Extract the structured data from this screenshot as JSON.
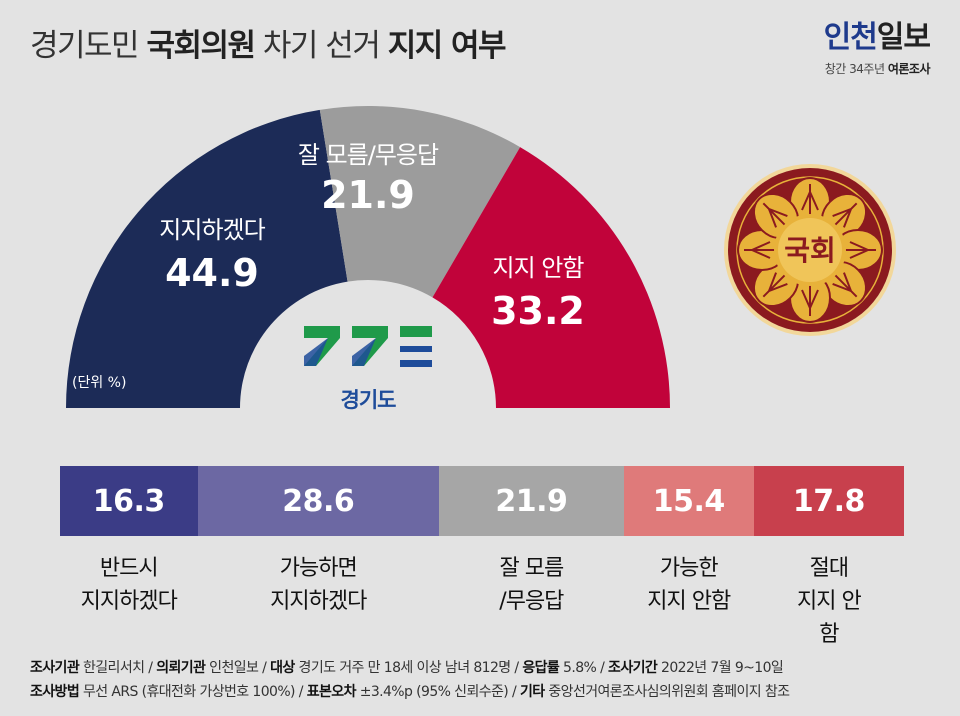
{
  "header": {
    "title_part1": "경기도민",
    "title_part2": "국회의원",
    "title_part3": "차기 선거",
    "title_part4": "지지 여부",
    "brand_name_a": "인천",
    "brand_name_b": "일보",
    "brand_sub_a": "창간 34주년",
    "brand_sub_b": "여론조사"
  },
  "gauge": {
    "unit_label": "(단위 %)",
    "segments": [
      {
        "label": "지지하겠다",
        "value": 44.9,
        "color": "#1c2b57"
      },
      {
        "label": "잘 모름/무응답",
        "value": 21.9,
        "color": "#9c9c9c"
      },
      {
        "label": "지지 안함",
        "value": 33.2,
        "color": "#c1033a"
      }
    ]
  },
  "logos": {
    "gyeonggi_name": "경기도",
    "seal_text": "국회",
    "seal_color": "#8b1a1f",
    "seal_gold": "#e8b23a"
  },
  "bars": {
    "items": [
      {
        "value": "16.3",
        "label": "반드시\n지지하겠다",
        "color": "#3b3c86"
      },
      {
        "value": "28.6",
        "label": "가능하면\n지지하겠다",
        "color": "#6c68a3"
      },
      {
        "value": "21.9",
        "label": "잘 모름\n/무응답",
        "color": "#a6a6a6"
      },
      {
        "value": "15.4",
        "label": "가능한\n지지 안함",
        "color": "#df7a7a"
      },
      {
        "value": "17.8",
        "label": "절대\n지지 안함",
        "color": "#c8404d"
      }
    ]
  },
  "chart_data": [
    {
      "type": "pie",
      "title": "경기도민 국회의원 차기 선거 지지 여부",
      "unit": "%",
      "categories": [
        "지지하겠다",
        "잘 모름/무응답",
        "지지 안함"
      ],
      "values": [
        44.9,
        21.9,
        33.2
      ]
    },
    {
      "type": "bar",
      "orientation": "stacked-horizontal",
      "unit": "%",
      "categories": [
        "반드시 지지하겠다",
        "가능하면 지지하겠다",
        "잘 모름/무응답",
        "가능한 지지 안함",
        "절대 지지 안함"
      ],
      "values": [
        16.3,
        28.6,
        21.9,
        15.4,
        17.8
      ]
    }
  ],
  "footer": {
    "line1": [
      {
        "k": "조사기관",
        "v": " 한길리서치 / "
      },
      {
        "k": "의뢰기관",
        "v": " 인천일보 / "
      },
      {
        "k": "대상",
        "v": " 경기도 거주 만 18세 이상 남녀 812명 / "
      },
      {
        "k": "응답률",
        "v": " 5.8% / "
      },
      {
        "k": "조사기간",
        "v": " 2022년 7월 9~10일"
      }
    ],
    "line2": [
      {
        "k": "조사방법",
        "v": " 무선 ARS (휴대전화 가상번호 100%) / "
      },
      {
        "k": "표본오차",
        "v": " ±3.4%p (95% 신뢰수준) / "
      },
      {
        "k": "기타",
        "v": " 중앙선거여론조사심의위원회 홈페이지 참조"
      }
    ]
  }
}
